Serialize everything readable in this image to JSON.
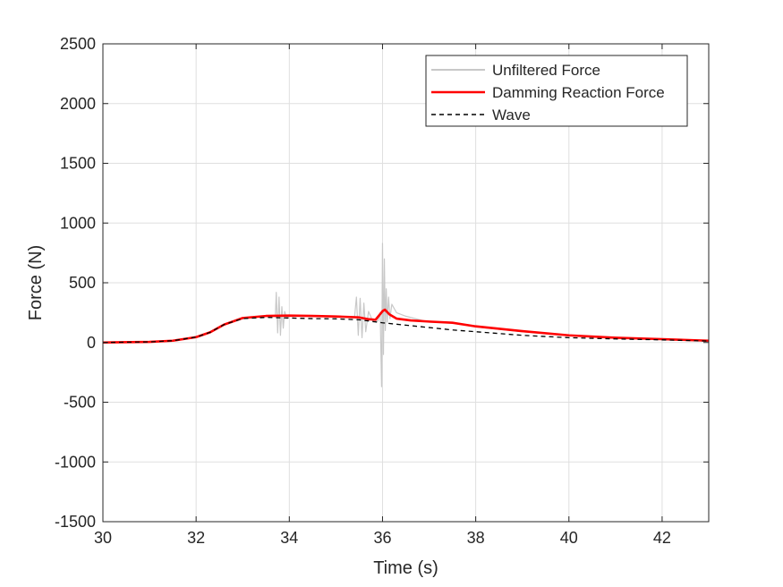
{
  "chart_data": {
    "type": "line",
    "title": "",
    "xlabel": "Time (s)",
    "ylabel": "Force (N)",
    "xlim": [
      30,
      43
    ],
    "ylim": [
      -1500,
      2500
    ],
    "xticks": [
      30,
      32,
      34,
      36,
      38,
      40,
      42
    ],
    "yticks": [
      -1500,
      -1000,
      -500,
      0,
      500,
      1000,
      1500,
      2000,
      2500
    ],
    "grid": true,
    "legend_position": "top-right",
    "series": [
      {
        "name": "Unfiltered Force",
        "color": "#c8c8c8",
        "style": "solid",
        "x": [
          30.0,
          31.0,
          31.5,
          32.0,
          32.3,
          32.6,
          33.0,
          33.5,
          33.7,
          33.72,
          33.75,
          33.78,
          33.81,
          33.84,
          33.87,
          33.9,
          33.95,
          34.0,
          34.5,
          35.0,
          35.4,
          35.44,
          35.48,
          35.52,
          35.56,
          35.6,
          35.64,
          35.7,
          35.8,
          35.9,
          35.95,
          35.98,
          36.0,
          36.02,
          36.04,
          36.06,
          36.08,
          36.1,
          36.13,
          36.16,
          36.2,
          36.3,
          36.5,
          36.8,
          37.0,
          37.5,
          38.0,
          39.0,
          40.0,
          41.0,
          42.0,
          43.0
        ],
        "y": [
          0,
          5,
          15,
          45,
          85,
          150,
          205,
          220,
          215,
          420,
          80,
          380,
          60,
          300,
          120,
          260,
          200,
          225,
          222,
          218,
          212,
          380,
          60,
          370,
          40,
          330,
          90,
          260,
          170,
          180,
          250,
          -370,
          830,
          -100,
          700,
          100,
          450,
          170,
          380,
          200,
          320,
          250,
          220,
          190,
          170,
          165,
          130,
          90,
          60,
          40,
          28,
          15
        ]
      },
      {
        "name": "Damming Reaction Force",
        "color": "#ff0000",
        "style": "solid",
        "x": [
          30.0,
          31.0,
          31.5,
          32.0,
          32.3,
          32.6,
          33.0,
          33.5,
          34.0,
          34.5,
          35.0,
          35.5,
          35.7,
          35.85,
          36.0,
          36.05,
          36.15,
          36.3,
          36.6,
          37.0,
          37.5,
          38.0,
          39.0,
          40.0,
          41.0,
          42.0,
          43.0
        ],
        "y": [
          0,
          5,
          15,
          45,
          85,
          150,
          205,
          222,
          225,
          222,
          218,
          210,
          195,
          190,
          262,
          275,
          235,
          200,
          185,
          175,
          165,
          135,
          95,
          60,
          40,
          28,
          15
        ]
      },
      {
        "name": "Wave",
        "color": "#000000",
        "style": "dashed",
        "x": [
          30.0,
          31.0,
          31.5,
          32.0,
          32.3,
          32.6,
          33.0,
          33.5,
          34.0,
          34.5,
          35.0,
          35.5,
          36.0,
          36.5,
          37.0,
          37.5,
          38.0,
          39.0,
          40.0,
          41.0,
          42.0,
          43.0
        ],
        "y": [
          0,
          5,
          15,
          45,
          85,
          150,
          200,
          210,
          205,
          200,
          198,
          190,
          165,
          145,
          125,
          105,
          90,
          60,
          40,
          30,
          22,
          12
        ]
      }
    ]
  }
}
